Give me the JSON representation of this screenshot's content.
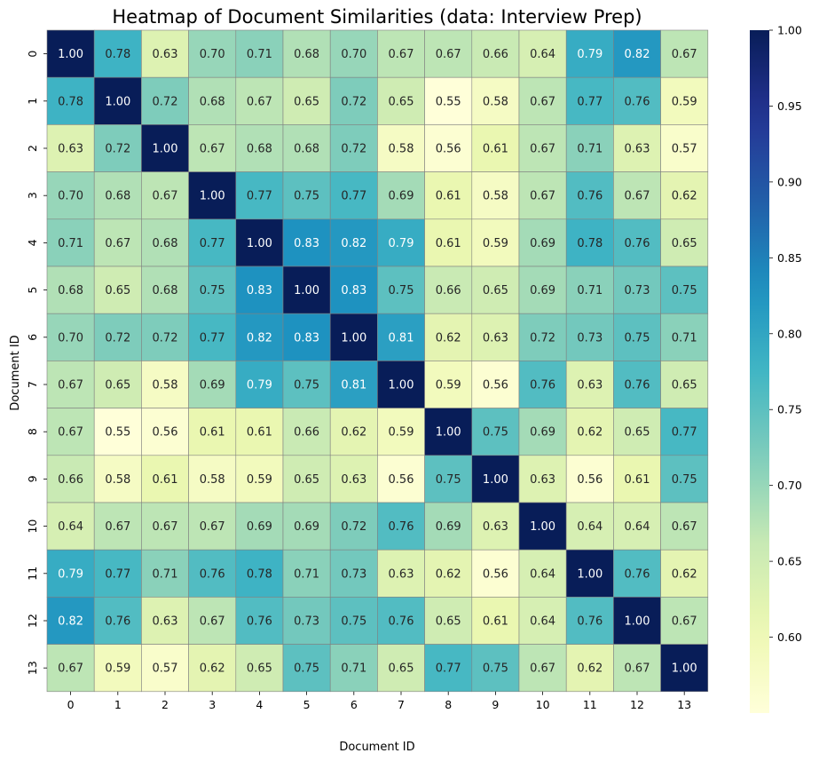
{
  "chart_data": {
    "type": "heatmap",
    "title": "Heatmap of Document Similarities (data: Interview Prep)",
    "xlabel": "Document ID",
    "ylabel": "Document ID",
    "x_categories": [
      "0",
      "1",
      "2",
      "3",
      "4",
      "5",
      "6",
      "7",
      "8",
      "9",
      "10",
      "11",
      "12",
      "13"
    ],
    "y_categories": [
      "0",
      "1",
      "2",
      "3",
      "4",
      "5",
      "6",
      "7",
      "8",
      "9",
      "10",
      "11",
      "12",
      "13"
    ],
    "values": [
      [
        1.0,
        0.78,
        0.63,
        0.7,
        0.71,
        0.68,
        0.7,
        0.67,
        0.67,
        0.66,
        0.64,
        0.79,
        0.82,
        0.67
      ],
      [
        0.78,
        1.0,
        0.72,
        0.68,
        0.67,
        0.65,
        0.72,
        0.65,
        0.55,
        0.58,
        0.67,
        0.77,
        0.76,
        0.59
      ],
      [
        0.63,
        0.72,
        1.0,
        0.67,
        0.68,
        0.68,
        0.72,
        0.58,
        0.56,
        0.61,
        0.67,
        0.71,
        0.63,
        0.57
      ],
      [
        0.7,
        0.68,
        0.67,
        1.0,
        0.77,
        0.75,
        0.77,
        0.69,
        0.61,
        0.58,
        0.67,
        0.76,
        0.67,
        0.62
      ],
      [
        0.71,
        0.67,
        0.68,
        0.77,
        1.0,
        0.83,
        0.82,
        0.79,
        0.61,
        0.59,
        0.69,
        0.78,
        0.76,
        0.65
      ],
      [
        0.68,
        0.65,
        0.68,
        0.75,
        0.83,
        1.0,
        0.83,
        0.75,
        0.66,
        0.65,
        0.69,
        0.71,
        0.73,
        0.75
      ],
      [
        0.7,
        0.72,
        0.72,
        0.77,
        0.82,
        0.83,
        1.0,
        0.81,
        0.62,
        0.63,
        0.72,
        0.73,
        0.75,
        0.71
      ],
      [
        0.67,
        0.65,
        0.58,
        0.69,
        0.79,
        0.75,
        0.81,
        1.0,
        0.59,
        0.56,
        0.76,
        0.63,
        0.76,
        0.65
      ],
      [
        0.67,
        0.55,
        0.56,
        0.61,
        0.61,
        0.66,
        0.62,
        0.59,
        1.0,
        0.75,
        0.69,
        0.62,
        0.65,
        0.77
      ],
      [
        0.66,
        0.58,
        0.61,
        0.58,
        0.59,
        0.65,
        0.63,
        0.56,
        0.75,
        1.0,
        0.63,
        0.56,
        0.61,
        0.75
      ],
      [
        0.64,
        0.67,
        0.67,
        0.67,
        0.69,
        0.69,
        0.72,
        0.76,
        0.69,
        0.63,
        1.0,
        0.64,
        0.64,
        0.67
      ],
      [
        0.79,
        0.77,
        0.71,
        0.76,
        0.78,
        0.71,
        0.73,
        0.63,
        0.62,
        0.56,
        0.64,
        1.0,
        0.76,
        0.62
      ],
      [
        0.82,
        0.76,
        0.63,
        0.67,
        0.76,
        0.73,
        0.75,
        0.76,
        0.65,
        0.61,
        0.64,
        0.76,
        1.0,
        0.67
      ],
      [
        0.67,
        0.59,
        0.57,
        0.62,
        0.65,
        0.75,
        0.71,
        0.65,
        0.77,
        0.75,
        0.67,
        0.62,
        0.67,
        1.0
      ]
    ],
    "value_format": "2 decimals",
    "colormap": "YlGnBu",
    "color_range": [
      0.55,
      1.0
    ],
    "colorbar_ticks": [
      "0.60",
      "0.65",
      "0.70",
      "0.75",
      "0.80",
      "0.85",
      "0.90",
      "0.95",
      "1.00"
    ],
    "colorbar_tick_values": [
      0.6,
      0.65,
      0.7,
      0.75,
      0.8,
      0.85,
      0.9,
      0.95,
      1.0
    ],
    "cell_border_color": "#808080",
    "grid": false,
    "legend": "colorbar-right"
  }
}
